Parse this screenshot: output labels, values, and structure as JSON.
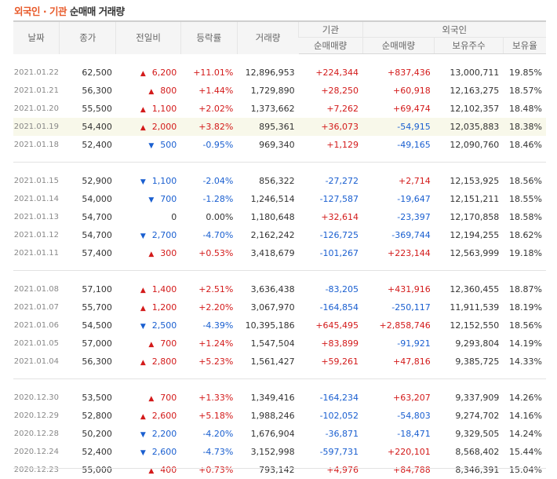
{
  "title": {
    "part1": "외국인 · 기관",
    "part2": "순매매 거래량"
  },
  "headers": {
    "date": "날짜",
    "close": "종가",
    "change": "전일비",
    "rate": "등락률",
    "volume": "거래량",
    "inst_group": "기관",
    "inst_net": "순매매량",
    "foreign_group": "외국인",
    "foreign_net": "순매매량",
    "foreign_hold": "보유주수",
    "foreign_ratio": "보유율"
  },
  "colors": {
    "up": "#d31a1a",
    "down": "#1a5fd0",
    "highlight": "#f8f8ea",
    "title_accent": "#e85a2a"
  },
  "rows": [
    {
      "date": "2021.01.22",
      "close": "62,500",
      "dir": "up",
      "change": "6,200",
      "rate": "+11.01%",
      "volume": "12,896,953",
      "inst": "+224,344",
      "foreign": "+837,436",
      "hold": "13,000,711",
      "ratio": "19.85%"
    },
    {
      "date": "2021.01.21",
      "close": "56,300",
      "dir": "up",
      "change": "800",
      "rate": "+1.44%",
      "volume": "1,729,890",
      "inst": "+28,250",
      "foreign": "+60,918",
      "hold": "12,163,275",
      "ratio": "18.57%"
    },
    {
      "date": "2021.01.20",
      "close": "55,500",
      "dir": "up",
      "change": "1,100",
      "rate": "+2.02%",
      "volume": "1,373,662",
      "inst": "+7,262",
      "foreign": "+69,474",
      "hold": "12,102,357",
      "ratio": "18.48%"
    },
    {
      "date": "2021.01.19",
      "close": "54,400",
      "dir": "up",
      "change": "2,000",
      "rate": "+3.82%",
      "volume": "895,361",
      "inst": "+36,073",
      "foreign": "-54,915",
      "hold": "12,035,883",
      "ratio": "18.38%",
      "highlight": true
    },
    {
      "date": "2021.01.18",
      "close": "52,400",
      "dir": "down",
      "change": "500",
      "rate": "-0.95%",
      "volume": "969,340",
      "inst": "+1,129",
      "foreign": "-49,165",
      "hold": "12,090,760",
      "ratio": "18.46%"
    },
    {
      "date": "2021.01.15",
      "close": "52,900",
      "dir": "down",
      "change": "1,100",
      "rate": "-2.04%",
      "volume": "856,322",
      "inst": "-27,272",
      "foreign": "+2,714",
      "hold": "12,153,925",
      "ratio": "18.56%"
    },
    {
      "date": "2021.01.14",
      "close": "54,000",
      "dir": "down",
      "change": "700",
      "rate": "-1.28%",
      "volume": "1,246,514",
      "inst": "-127,587",
      "foreign": "-19,647",
      "hold": "12,151,211",
      "ratio": "18.55%"
    },
    {
      "date": "2021.01.13",
      "close": "54,700",
      "dir": "flat",
      "change": "0",
      "rate": "0.00%",
      "volume": "1,180,648",
      "inst": "+32,614",
      "foreign": "-23,397",
      "hold": "12,170,858",
      "ratio": "18.58%"
    },
    {
      "date": "2021.01.12",
      "close": "54,700",
      "dir": "down",
      "change": "2,700",
      "rate": "-4.70%",
      "volume": "2,162,242",
      "inst": "-126,725",
      "foreign": "-369,744",
      "hold": "12,194,255",
      "ratio": "18.62%"
    },
    {
      "date": "2021.01.11",
      "close": "57,400",
      "dir": "up",
      "change": "300",
      "rate": "+0.53%",
      "volume": "3,418,679",
      "inst": "-101,267",
      "foreign": "+223,144",
      "hold": "12,563,999",
      "ratio": "19.18%"
    },
    {
      "date": "2021.01.08",
      "close": "57,100",
      "dir": "up",
      "change": "1,400",
      "rate": "+2.51%",
      "volume": "3,636,438",
      "inst": "-83,205",
      "foreign": "+431,916",
      "hold": "12,360,455",
      "ratio": "18.87%"
    },
    {
      "date": "2021.01.07",
      "close": "55,700",
      "dir": "up",
      "change": "1,200",
      "rate": "+2.20%",
      "volume": "3,067,970",
      "inst": "-164,854",
      "foreign": "-250,117",
      "hold": "11,911,539",
      "ratio": "18.19%"
    },
    {
      "date": "2021.01.06",
      "close": "54,500",
      "dir": "down",
      "change": "2,500",
      "rate": "-4.39%",
      "volume": "10,395,186",
      "inst": "+645,495",
      "foreign": "+2,858,746",
      "hold": "12,152,550",
      "ratio": "18.56%"
    },
    {
      "date": "2021.01.05",
      "close": "57,000",
      "dir": "up",
      "change": "700",
      "rate": "+1.24%",
      "volume": "1,547,504",
      "inst": "+83,899",
      "foreign": "-91,921",
      "hold": "9,293,804",
      "ratio": "14.19%"
    },
    {
      "date": "2021.01.04",
      "close": "56,300",
      "dir": "up",
      "change": "2,800",
      "rate": "+5.23%",
      "volume": "1,561,427",
      "inst": "+59,261",
      "foreign": "+47,816",
      "hold": "9,385,725",
      "ratio": "14.33%"
    },
    {
      "date": "2020.12.30",
      "close": "53,500",
      "dir": "up",
      "change": "700",
      "rate": "+1.33%",
      "volume": "1,349,416",
      "inst": "-164,234",
      "foreign": "+63,207",
      "hold": "9,337,909",
      "ratio": "14.26%"
    },
    {
      "date": "2020.12.29",
      "close": "52,800",
      "dir": "up",
      "change": "2,600",
      "rate": "+5.18%",
      "volume": "1,988,246",
      "inst": "-102,052",
      "foreign": "-54,803",
      "hold": "9,274,702",
      "ratio": "14.16%"
    },
    {
      "date": "2020.12.28",
      "close": "50,200",
      "dir": "down",
      "change": "2,200",
      "rate": "-4.20%",
      "volume": "1,676,904",
      "inst": "-36,871",
      "foreign": "-18,471",
      "hold": "9,329,505",
      "ratio": "14.24%"
    },
    {
      "date": "2020.12.24",
      "close": "52,400",
      "dir": "down",
      "change": "2,600",
      "rate": "-4.73%",
      "volume": "3,152,998",
      "inst": "-597,731",
      "foreign": "+220,101",
      "hold": "8,568,402",
      "ratio": "15.44%"
    },
    {
      "date": "2020.12.23",
      "close": "55,000",
      "dir": "up",
      "change": "400",
      "rate": "+0.73%",
      "volume": "793,142",
      "inst": "+4,976",
      "foreign": "+84,788",
      "hold": "8,346,391",
      "ratio": "15.04%"
    }
  ],
  "groups": [
    [
      0,
      1,
      2,
      3,
      4
    ],
    [
      5,
      6,
      7,
      8,
      9
    ],
    [
      10,
      11,
      12,
      13,
      14
    ],
    [
      15,
      16,
      17,
      18,
      19
    ]
  ]
}
